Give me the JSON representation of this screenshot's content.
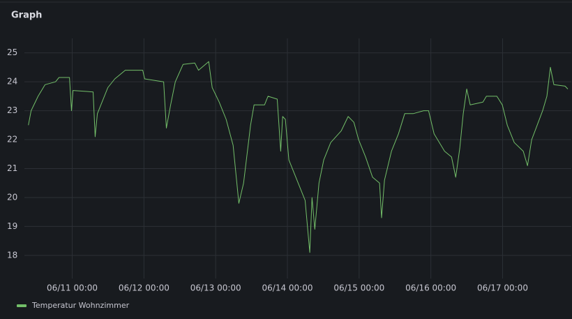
{
  "panel_title": "Graph",
  "chart_data": {
    "type": "line",
    "x": [
      "06/10 09:20",
      "06/10 10:15",
      "06/10 12:35",
      "06/10 14:55",
      "06/10 18:25",
      "06/10 19:35",
      "06/10 23:05",
      "06/10 23:45",
      "06/11 00:15",
      "06/11 07:00",
      "06/11 07:40",
      "06/11 08:25",
      "06/11 11:55",
      "06/11 14:15",
      "06/11 17:45",
      "06/11 23:35",
      "06/12 00:15",
      "06/12 06:35",
      "06/12 07:30",
      "06/12 08:55",
      "06/12 10:30",
      "06/12 13:05",
      "06/12 17:00",
      "06/12 18:15",
      "06/12 21:40",
      "06/12 22:50",
      "06/13 01:10",
      "06/13 03:30",
      "06/13 05:50",
      "06/13 07:45",
      "06/13 09:20",
      "06/13 11:40",
      "06/13 12:50",
      "06/13 16:20",
      "06/13 17:30",
      "06/13 20:35",
      "06/13 21:45",
      "06/13 22:25",
      "06/13 23:20",
      "06/14 00:30",
      "06/14 02:50",
      "06/14 05:55",
      "06/14 07:30",
      "06/14 08:15",
      "06/14 09:10",
      "06/14 10:35",
      "06/14 12:10",
      "06/14 14:30",
      "06/14 18:00",
      "06/14 20:20",
      "06/14 22:15",
      "06/14 23:50",
      "06/15 02:10",
      "06/15 04:30",
      "06/15 06:50",
      "06/15 07:30",
      "06/15 08:30",
      "06/15 10:50",
      "06/15 13:10",
      "06/15 15:15",
      "06/15 18:05",
      "06/15 21:35",
      "06/15 23:15",
      "06/16 01:05",
      "06/16 04:35",
      "06/16 06:55",
      "06/16 08:20",
      "06/16 09:40",
      "06/16 10:50",
      "06/16 12:00",
      "06/16 13:10",
      "06/16 17:25",
      "06/16 18:35",
      "06/16 22:05",
      "06/16 23:55",
      "06/17 01:35",
      "06/17 03:55",
      "06/17 06:55",
      "06/17 08:20",
      "06/17 09:45",
      "06/17 11:35",
      "06/17 13:25",
      "06/17 14:50",
      "06/17 16:00",
      "06/17 17:10",
      "06/17 20:55",
      "06/17 21:50"
    ],
    "series": [
      {
        "name": "Temperatur Wohnzimmer",
        "color": "#73bf69",
        "values": [
          22.5,
          23.0,
          23.5,
          23.9,
          24.0,
          24.15,
          24.15,
          23.0,
          23.7,
          23.65,
          22.1,
          22.9,
          23.8,
          24.1,
          24.4,
          24.4,
          24.1,
          24.0,
          22.4,
          23.2,
          24.0,
          24.6,
          24.65,
          24.4,
          24.7,
          23.8,
          23.3,
          22.7,
          21.8,
          19.8,
          20.5,
          22.5,
          23.2,
          23.2,
          23.5,
          23.4,
          21.6,
          22.8,
          22.7,
          21.3,
          20.7,
          19.9,
          18.1,
          20.0,
          18.9,
          20.5,
          21.3,
          21.9,
          22.3,
          22.8,
          22.6,
          22.0,
          21.4,
          20.7,
          20.5,
          19.3,
          20.6,
          21.6,
          22.2,
          22.9,
          22.9,
          23.0,
          23.0,
          22.2,
          21.6,
          21.4,
          20.7,
          21.7,
          22.9,
          23.75,
          23.2,
          23.3,
          23.5,
          23.5,
          23.2,
          22.5,
          21.9,
          21.6,
          21.1,
          22.0,
          22.5,
          23.0,
          23.5,
          24.5,
          23.9,
          23.85,
          23.75
        ]
      }
    ],
    "xlim": [
      "06/10 08:00",
      "06/17 23:00"
    ],
    "xticks": [
      "06/11 00:00",
      "06/12 00:00",
      "06/13 00:00",
      "06/14 00:00",
      "06/15 00:00",
      "06/16 00:00",
      "06/17 00:00"
    ],
    "ylim": [
      17.2,
      25.5
    ],
    "yticks": [
      18,
      19,
      20,
      21,
      22,
      23,
      24,
      25
    ],
    "grid": true
  }
}
